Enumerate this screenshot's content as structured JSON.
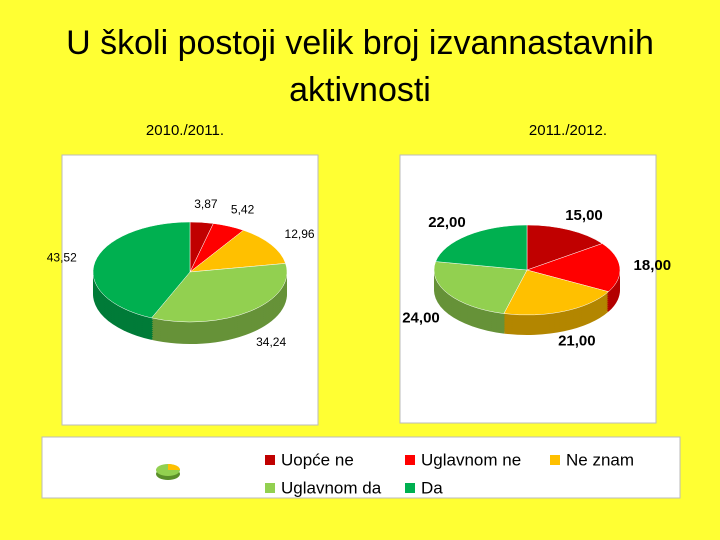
{
  "title": "U školi postoji velik broj izvannastavnih aktivnosti",
  "chart_data": [
    {
      "type": "pie",
      "title": "2010./2011.",
      "categories": [
        "Uopće ne",
        "Uglavnom ne",
        "Ne znam",
        "Uglavnom da",
        "Da"
      ],
      "values": [
        3.87,
        5.42,
        12.96,
        34.24,
        43.52
      ],
      "value_labels": [
        "3,87",
        "5,42",
        "12,96",
        "34,24",
        "43,52"
      ],
      "colors": [
        "#c00000",
        "#ff0000",
        "#ffc000",
        "#92d050",
        "#00b050"
      ]
    },
    {
      "type": "pie",
      "title": "2011./2012.",
      "categories": [
        "Uopće ne",
        "Uglavnom ne",
        "Ne znam",
        "Uglavnom da",
        "Da"
      ],
      "values": [
        15.0,
        18.0,
        21.0,
        24.0,
        22.0
      ],
      "value_labels": [
        "15,00",
        "18,00",
        "21,00",
        "24,00",
        "22,00"
      ],
      "colors": [
        "#c00000",
        "#ff0000",
        "#ffc000",
        "#92d050",
        "#00b050"
      ]
    }
  ]
}
